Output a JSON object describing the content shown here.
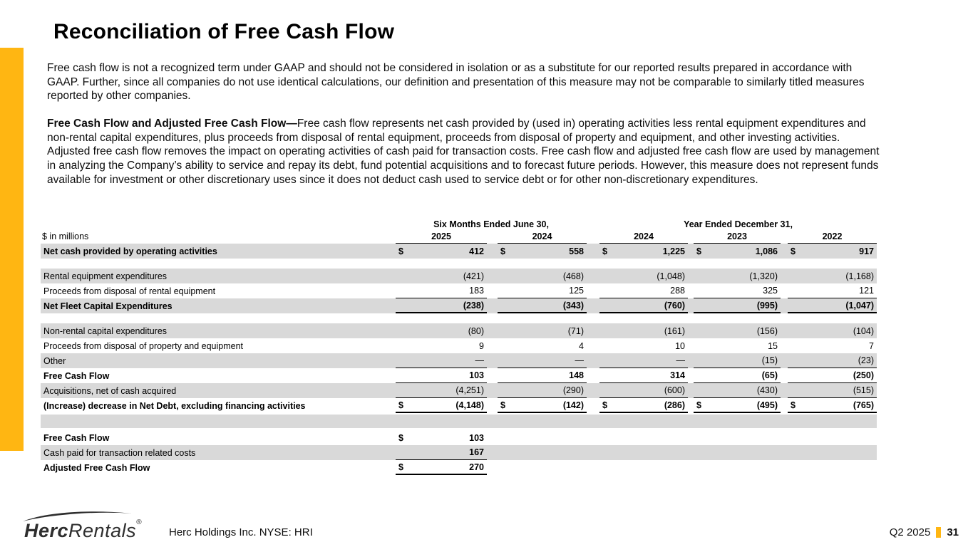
{
  "colors": {
    "accent": "#FFB612",
    "row_shade": "#D9D9D9"
  },
  "slide": {
    "title": "Reconciliation of Free Cash Flow",
    "footer_company": "Herc Holdings Inc.  NYSE: HRI",
    "period_label": "Q2 2025",
    "page_number": "31",
    "logo": {
      "brand_bold": "Herc",
      "brand_light": "Rentals",
      "registered_mark": "®"
    }
  },
  "paragraph1": "Free cash flow is not a recognized term under GAAP and should not be considered in isolation or as a substitute for our reported results prepared in accordance with GAAP.  Further, since all companies do not use identical calculations, our definition and presentation of this measure may not be comparable to similarly titled measures reported by other companies.",
  "paragraph2_lead": "Free Cash Flow and Adjusted Free Cash Flow—",
  "paragraph2_rest": "Free cash flow represents net cash provided by (used in) operating activities less rental equipment expenditures and non-rental capital expenditures, plus proceeds from disposal of rental equipment, proceeds from disposal of property and equipment, and other investing activities. Adjusted free cash flow removes the impact on operating activities of cash paid for transaction costs. Free cash flow and adjusted free cash flow are used by management in analyzing the Company’s ability to service and repay its debt, fund potential acquisitions and to forecast future periods.  However, this measure does not represent funds available for investment or other discretionary uses since it does not deduct cash used to service debt or for other non-discretionary expenditures.",
  "table": {
    "unit_label": "$ in millions",
    "group_headers": {
      "six_months": "Six Months Ended June 30,",
      "year_ended": "Year Ended December 31,"
    },
    "year_columns": [
      "2025",
      "2024",
      "2024",
      "2023",
      "2022"
    ],
    "rows": [
      {
        "label": "Net cash provided by operating activities",
        "bold": true,
        "shaded": true,
        "dollar": true,
        "rule": "none",
        "values": [
          "412",
          "558",
          "1,225",
          "1,086",
          "917"
        ]
      },
      {
        "type": "gap"
      },
      {
        "label": "Rental equipment expenditures",
        "shaded": true,
        "rule": "none",
        "values": [
          "(421)",
          "(468)",
          "(1,048)",
          "(1,320)",
          "(1,168)"
        ]
      },
      {
        "label": "Proceeds from disposal of rental equipment",
        "rule": "thin",
        "values": [
          "183",
          "125",
          "288",
          "325",
          "121"
        ]
      },
      {
        "label": "Net Fleet Capital Expenditures",
        "bold": true,
        "shaded": true,
        "rule": "thick",
        "values": [
          "(238)",
          "(343)",
          "(760)",
          "(995)",
          "(1,047)"
        ]
      },
      {
        "type": "gap"
      },
      {
        "label": "Non-rental capital expenditures",
        "shaded": true,
        "rule": "none",
        "values": [
          "(80)",
          "(71)",
          "(161)",
          "(156)",
          "(104)"
        ]
      },
      {
        "label": "Proceeds from disposal of property and equipment",
        "rule": "none",
        "values": [
          "9",
          "4",
          "10",
          "15",
          "7"
        ]
      },
      {
        "label": "Other",
        "shaded": true,
        "rule": "thin",
        "values": [
          "—",
          "—",
          "—",
          "(15)",
          "(23)"
        ]
      },
      {
        "label": "Free Cash Flow",
        "bold": true,
        "rule": "thin",
        "values": [
          "103",
          "148",
          "314",
          "(65)",
          "(250)"
        ]
      },
      {
        "label": "Acquisitions, net of cash acquired",
        "shaded": true,
        "rule": "thin",
        "values": [
          "(4,251)",
          "(290)",
          "(600)",
          "(430)",
          "(515)"
        ]
      },
      {
        "label": "(Increase) decrease in Net Debt, excluding financing activities",
        "bold": true,
        "dollar": true,
        "rule": "thick",
        "values": [
          "(4,148)",
          "(142)",
          "(286)",
          "(495)",
          "(765)"
        ]
      },
      {
        "type": "shaded-spacer"
      },
      {
        "label": "Free Cash Flow",
        "bold": true,
        "dollar": true,
        "rule": "none",
        "values": [
          "103",
          "",
          "",
          "",
          ""
        ]
      },
      {
        "label": "Cash paid for transaction related costs",
        "shaded": true,
        "value_bold": true,
        "rule": "thin",
        "values": [
          "167",
          "",
          "",
          "",
          ""
        ]
      },
      {
        "label": "Adjusted Free Cash Flow",
        "bold": true,
        "dollar": true,
        "rule": "thick",
        "values": [
          "270",
          "",
          "",
          "",
          ""
        ]
      }
    ]
  }
}
